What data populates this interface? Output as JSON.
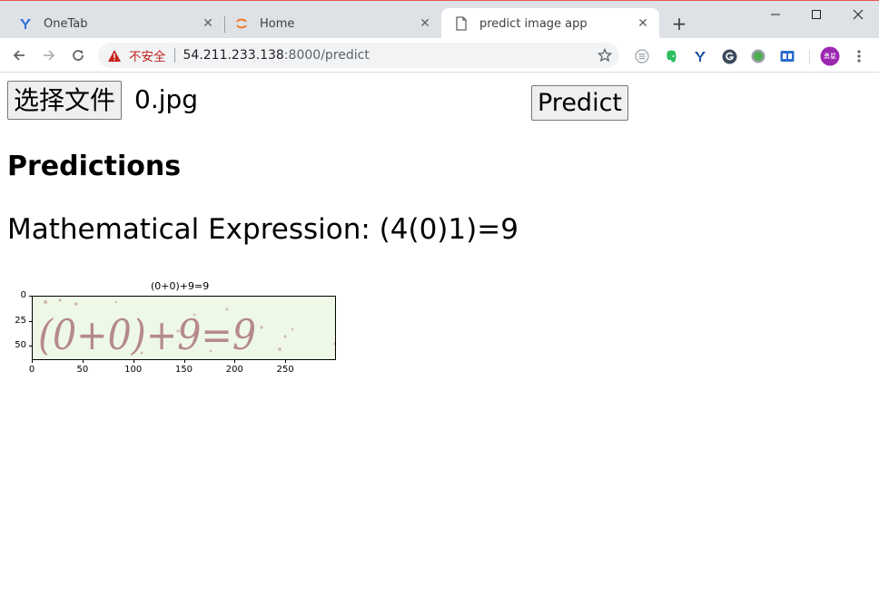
{
  "tabs": [
    {
      "title": "OneTab",
      "icon": "onetab-icon",
      "active": false
    },
    {
      "title": "Home",
      "icon": "jupyter-icon",
      "active": false
    },
    {
      "title": "predict image app",
      "icon": "page-icon",
      "active": true
    }
  ],
  "address_bar": {
    "security_label": "不安全",
    "host": "54.211.233.138",
    "path": ":8000/predict"
  },
  "extensions": [
    "grid-extension-icon",
    "evernote-icon",
    "onetab-extension-icon",
    "g-extension-icon",
    "green-dot-extension-icon",
    "reader-extension-icon"
  ],
  "profile": {
    "label": "勇星",
    "color": "#9c27b0"
  },
  "page": {
    "file_button_label": "选择文件",
    "file_name": "0.jpg",
    "predict_button_label": "Predict",
    "heading": "Predictions",
    "expression_label": "Mathematical Expression: ",
    "expression_value": "(4(0)1)=9"
  },
  "plot": {
    "title": "(0+0)+9=9",
    "image_text": "(0+0)+9=9",
    "y_ticks": [
      {
        "value": 0,
        "label": "0"
      },
      {
        "value": 25,
        "label": "25"
      },
      {
        "value": 50,
        "label": "50"
      }
    ],
    "x_ticks": [
      {
        "value": 0,
        "label": "0"
      },
      {
        "value": 50,
        "label": "50"
      },
      {
        "value": 100,
        "label": "100"
      },
      {
        "value": 150,
        "label": "150"
      },
      {
        "value": 200,
        "label": "200"
      },
      {
        "value": 250,
        "label": "250"
      }
    ],
    "x_range": [
      0,
      300
    ],
    "y_range": [
      0,
      64
    ],
    "colors": {
      "background": "#eef8e6",
      "glyph": "#b58a8a"
    }
  }
}
